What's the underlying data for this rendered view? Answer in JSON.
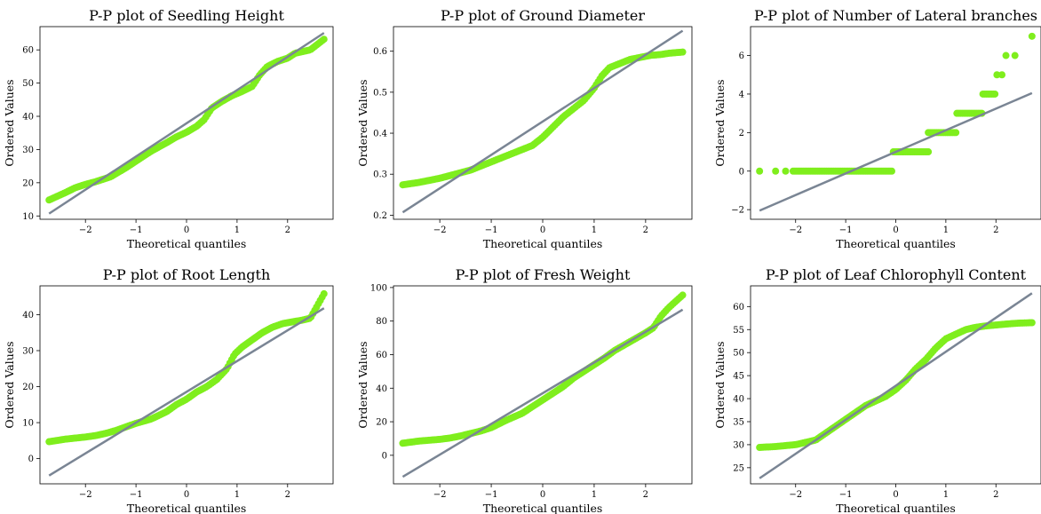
{
  "colors": {
    "points": "#7fee1d",
    "fit_line": "#7a8594"
  },
  "chart_data": [
    {
      "type": "scatter",
      "title": "P-P plot of Seedling Height",
      "xlabel": "Theoretical quantiles",
      "ylabel": "Ordered Values",
      "xlim": [
        -2.9,
        2.9
      ],
      "ylim": [
        9,
        67
      ],
      "xticks": [
        -2,
        -1,
        0,
        1,
        2
      ],
      "yticks": [
        10,
        20,
        30,
        40,
        50,
        60
      ],
      "fit_line": {
        "x": [
          -2.72,
          2.72
        ],
        "y": [
          10.7,
          65.1
        ]
      },
      "curve": [
        [
          -2.72,
          14.8
        ],
        [
          -2.4,
          17.0
        ],
        [
          -2.2,
          18.5
        ],
        [
          -2.0,
          19.5
        ],
        [
          -1.8,
          20.3
        ],
        [
          -1.5,
          21.8
        ],
        [
          -1.2,
          24.5
        ],
        [
          -1.0,
          26.5
        ],
        [
          -0.7,
          29.5
        ],
        [
          -0.4,
          32.0
        ],
        [
          -0.2,
          33.8
        ],
        [
          0.0,
          35.2
        ],
        [
          0.2,
          37.0
        ],
        [
          0.35,
          39.0
        ],
        [
          0.5,
          42.5
        ],
        [
          0.7,
          44.5
        ],
        [
          0.9,
          46.2
        ],
        [
          1.1,
          47.5
        ],
        [
          1.3,
          49.0
        ],
        [
          1.45,
          52.5
        ],
        [
          1.6,
          55.0
        ],
        [
          1.8,
          56.5
        ],
        [
          2.0,
          57.5
        ],
        [
          2.15,
          59.0
        ],
        [
          2.3,
          59.5
        ],
        [
          2.45,
          60.0
        ],
        [
          2.72,
          63.2
        ]
      ]
    },
    {
      "type": "scatter",
      "title": "P-P plot of Ground Diameter",
      "xlabel": "Theoretical quantiles",
      "ylabel": "Ordered Values",
      "xlim": [
        -2.9,
        2.9
      ],
      "ylim": [
        0.19,
        0.66
      ],
      "xticks": [
        -2,
        -1,
        0,
        1,
        2
      ],
      "yticks": [
        0.2,
        0.3,
        0.4,
        0.5,
        0.6
      ],
      "fit_line": {
        "x": [
          -2.72,
          2.72
        ],
        "y": [
          0.207,
          0.65
        ]
      },
      "curve": [
        [
          -2.72,
          0.274
        ],
        [
          -2.4,
          0.28
        ],
        [
          -2.2,
          0.285
        ],
        [
          -2.0,
          0.29
        ],
        [
          -1.7,
          0.3
        ],
        [
          -1.4,
          0.31
        ],
        [
          -1.1,
          0.325
        ],
        [
          -0.8,
          0.34
        ],
        [
          -0.5,
          0.355
        ],
        [
          -0.2,
          0.37
        ],
        [
          0.0,
          0.39
        ],
        [
          0.2,
          0.415
        ],
        [
          0.4,
          0.44
        ],
        [
          0.6,
          0.46
        ],
        [
          0.8,
          0.48
        ],
        [
          1.0,
          0.51
        ],
        [
          1.15,
          0.54
        ],
        [
          1.3,
          0.56
        ],
        [
          1.5,
          0.57
        ],
        [
          1.7,
          0.58
        ],
        [
          1.9,
          0.585
        ],
        [
          2.1,
          0.59
        ],
        [
          2.3,
          0.592
        ],
        [
          2.45,
          0.595
        ],
        [
          2.72,
          0.598
        ]
      ]
    },
    {
      "type": "scatter",
      "title": "P-P plot of Number of Lateral branches",
      "xlabel": "Theoretical quantiles",
      "ylabel": "Ordered Values",
      "xlim": [
        -2.9,
        2.9
      ],
      "ylim": [
        -2.5,
        7.5
      ],
      "xticks": [
        -2,
        -1,
        0,
        1,
        2
      ],
      "yticks": [
        -2,
        0,
        2,
        4,
        6
      ],
      "fit_line": {
        "x": [
          -2.72,
          2.72
        ],
        "y": [
          -2.05,
          4.05
        ]
      },
      "steps": [
        {
          "y": 0,
          "x": [
            -2.72,
            -2.4,
            -2.2
          ],
          "range": [
            -2.05,
            -0.08
          ]
        },
        {
          "y": 1,
          "range": [
            -0.05,
            0.65
          ]
        },
        {
          "y": 2,
          "range": [
            0.65,
            1.2
          ]
        },
        {
          "y": 3,
          "range": [
            1.22,
            1.72
          ]
        },
        {
          "y": 4,
          "range": [
            1.74,
            1.98
          ]
        },
        {
          "y": 5,
          "x": [
            2.02,
            2.12
          ]
        },
        {
          "y": 6,
          "x": [
            2.2,
            2.38
          ]
        },
        {
          "y": 7,
          "x": [
            2.72
          ]
        }
      ]
    },
    {
      "type": "scatter",
      "title": "P-P plot of Root Length",
      "xlabel": "Theoretical quantiles",
      "ylabel": "Ordered Values",
      "xlim": [
        -2.9,
        2.9
      ],
      "ylim": [
        -7,
        48
      ],
      "xticks": [
        -2,
        -1,
        0,
        1,
        2
      ],
      "yticks": [
        0,
        10,
        20,
        30,
        40
      ],
      "fit_line": {
        "x": [
          -2.72,
          2.72
        ],
        "y": [
          -4.7,
          41.8
        ]
      },
      "curve": [
        [
          -2.72,
          4.7
        ],
        [
          -2.4,
          5.4
        ],
        [
          -2.2,
          5.7
        ],
        [
          -2.0,
          6.0
        ],
        [
          -1.8,
          6.4
        ],
        [
          -1.6,
          7.0
        ],
        [
          -1.4,
          7.8
        ],
        [
          -1.2,
          8.8
        ],
        [
          -1.0,
          9.8
        ],
        [
          -0.7,
          11.0
        ],
        [
          -0.4,
          13.0
        ],
        [
          -0.2,
          15.0
        ],
        [
          0.0,
          16.5
        ],
        [
          0.2,
          18.5
        ],
        [
          0.4,
          20.0
        ],
        [
          0.6,
          22.0
        ],
        [
          0.8,
          25.0
        ],
        [
          0.95,
          29.0
        ],
        [
          1.1,
          31.0
        ],
        [
          1.3,
          33.0
        ],
        [
          1.5,
          35.0
        ],
        [
          1.7,
          36.5
        ],
        [
          1.9,
          37.5
        ],
        [
          2.1,
          38.0
        ],
        [
          2.3,
          38.5
        ],
        [
          2.45,
          39.0
        ],
        [
          2.72,
          45.8
        ]
      ]
    },
    {
      "type": "scatter",
      "title": "P-P plot of Fresh Weight",
      "xlabel": "Theoretical quantiles",
      "ylabel": "Ordered Values",
      "xlim": [
        -2.9,
        2.9
      ],
      "ylim": [
        -17,
        101
      ],
      "xticks": [
        -2,
        -1,
        0,
        1,
        2
      ],
      "yticks": [
        0,
        20,
        40,
        60,
        80,
        100
      ],
      "fit_line": {
        "x": [
          -2.72,
          2.72
        ],
        "y": [
          -12.8,
          86.8
        ]
      },
      "curve": [
        [
          -2.72,
          7.2
        ],
        [
          -2.4,
          8.5
        ],
        [
          -2.2,
          9.0
        ],
        [
          -2.0,
          9.5
        ],
        [
          -1.8,
          10.3
        ],
        [
          -1.6,
          11.5
        ],
        [
          -1.4,
          13.0
        ],
        [
          -1.2,
          14.5
        ],
        [
          -1.0,
          16.5
        ],
        [
          -0.7,
          21.0
        ],
        [
          -0.4,
          25.0
        ],
        [
          -0.2,
          29.0
        ],
        [
          0.0,
          33.0
        ],
        [
          0.2,
          37.0
        ],
        [
          0.4,
          41.0
        ],
        [
          0.6,
          46.0
        ],
        [
          0.8,
          50.0
        ],
        [
          1.0,
          54.0
        ],
        [
          1.2,
          58.0
        ],
        [
          1.4,
          62.5
        ],
        [
          1.6,
          66.0
        ],
        [
          1.8,
          69.5
        ],
        [
          2.0,
          73.0
        ],
        [
          2.15,
          76.0
        ],
        [
          2.3,
          83.0
        ],
        [
          2.45,
          88.0
        ],
        [
          2.72,
          95.5
        ]
      ]
    },
    {
      "type": "scatter",
      "title": "P-P plot of Leaf Chlorophyll Content",
      "xlabel": "Theoretical quantiles",
      "ylabel": "Ordered Values",
      "xlim": [
        -2.9,
        2.9
      ],
      "ylim": [
        21.5,
        64.5
      ],
      "xticks": [
        -2,
        -1,
        0,
        1,
        2
      ],
      "yticks": [
        25,
        30,
        35,
        40,
        45,
        50,
        55,
        60
      ],
      "fit_line": {
        "x": [
          -2.72,
          2.72
        ],
        "y": [
          22.7,
          62.9
        ]
      },
      "curve": [
        [
          -2.72,
          29.4
        ],
        [
          -2.4,
          29.6
        ],
        [
          -2.2,
          29.8
        ],
        [
          -2.0,
          30.0
        ],
        [
          -1.8,
          30.5
        ],
        [
          -1.6,
          31.0
        ],
        [
          -1.4,
          32.5
        ],
        [
          -1.2,
          34.0
        ],
        [
          -1.0,
          35.5
        ],
        [
          -0.8,
          37.0
        ],
        [
          -0.6,
          38.5
        ],
        [
          -0.4,
          39.5
        ],
        [
          -0.2,
          40.5
        ],
        [
          0.0,
          42.0
        ],
        [
          0.2,
          44.0
        ],
        [
          0.4,
          46.5
        ],
        [
          0.6,
          48.5
        ],
        [
          0.8,
          51.0
        ],
        [
          1.0,
          53.0
        ],
        [
          1.2,
          54.0
        ],
        [
          1.4,
          55.0
        ],
        [
          1.6,
          55.5
        ],
        [
          1.8,
          55.8
        ],
        [
          2.0,
          56.0
        ],
        [
          2.2,
          56.2
        ],
        [
          2.45,
          56.4
        ],
        [
          2.72,
          56.5
        ]
      ]
    }
  ]
}
